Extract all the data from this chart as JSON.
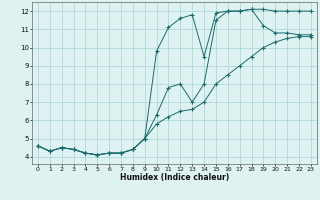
{
  "xlabel": "Humidex (Indice chaleur)",
  "bg_color": "#dff2f2",
  "grid_color": "#aed8d8",
  "line_color": "#1a6b6b",
  "xlim": [
    -0.5,
    23.5
  ],
  "ylim": [
    3.6,
    12.5
  ],
  "xticks": [
    0,
    1,
    2,
    3,
    4,
    5,
    6,
    7,
    8,
    9,
    10,
    11,
    12,
    13,
    14,
    15,
    16,
    17,
    18,
    19,
    20,
    21,
    22,
    23
  ],
  "yticks": [
    4,
    5,
    6,
    7,
    8,
    9,
    10,
    11,
    12
  ],
  "series1_x": [
    0,
    1,
    2,
    3,
    4,
    5,
    6,
    7,
    8,
    9,
    10,
    11,
    12,
    13,
    14,
    15,
    16,
    17,
    18,
    19,
    20,
    21,
    22,
    23
  ],
  "series1_y": [
    4.6,
    4.3,
    4.5,
    4.4,
    4.2,
    4.1,
    4.2,
    4.2,
    4.4,
    5.0,
    9.8,
    11.1,
    11.6,
    11.8,
    9.5,
    11.9,
    12.0,
    12.0,
    12.1,
    12.1,
    12.0,
    12.0,
    12.0,
    12.0
  ],
  "series2_x": [
    0,
    1,
    2,
    3,
    4,
    5,
    6,
    7,
    8,
    9,
    10,
    11,
    12,
    13,
    14,
    15,
    16,
    17,
    18,
    19,
    20,
    21,
    22,
    23
  ],
  "series2_y": [
    4.6,
    4.3,
    4.5,
    4.4,
    4.2,
    4.1,
    4.2,
    4.2,
    4.4,
    5.0,
    6.3,
    7.8,
    8.0,
    7.0,
    8.0,
    11.5,
    12.0,
    12.0,
    12.1,
    11.2,
    10.8,
    10.8,
    10.7,
    10.7
  ],
  "series3_x": [
    0,
    1,
    2,
    3,
    4,
    5,
    6,
    7,
    8,
    9,
    10,
    11,
    12,
    13,
    14,
    15,
    16,
    17,
    18,
    19,
    20,
    21,
    22,
    23
  ],
  "series3_y": [
    4.6,
    4.3,
    4.5,
    4.4,
    4.2,
    4.1,
    4.2,
    4.2,
    4.4,
    5.0,
    5.8,
    6.2,
    6.5,
    6.6,
    7.0,
    8.0,
    8.5,
    9.0,
    9.5,
    10.0,
    10.3,
    10.5,
    10.6,
    10.6
  ]
}
